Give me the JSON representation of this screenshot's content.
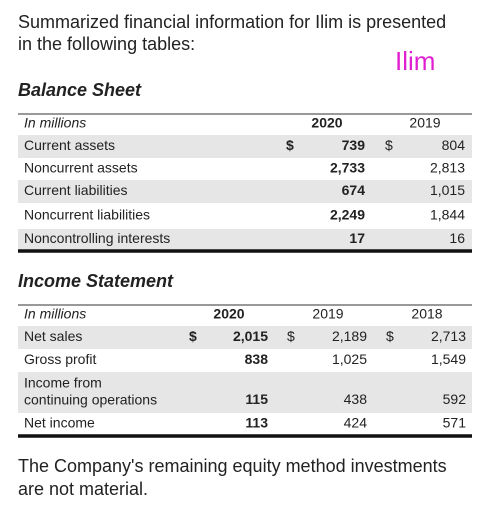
{
  "intro": [
    "Summarized financial information for Ilim is presented",
    "in the following tables:"
  ],
  "company_tag": "Ilim",
  "balance_sheet": {
    "title": "Balance Sheet",
    "header": {
      "label": "In millions",
      "years": [
        "2020",
        "2019"
      ]
    },
    "rows": [
      {
        "label": "Current assets",
        "currency": "$",
        "values": [
          "739",
          "804"
        ]
      },
      {
        "label": "Noncurrent assets",
        "values": [
          "2,733",
          "2,813"
        ]
      },
      {
        "label": "Current liabilities",
        "values": [
          "674",
          "1,015"
        ]
      },
      {
        "label": "Noncurrent liabilities",
        "values": [
          "2,249",
          "1,844"
        ]
      },
      {
        "label": "Noncontrolling interests",
        "values": [
          "17",
          "16"
        ]
      }
    ]
  },
  "income_statement": {
    "title": "Income Statement",
    "header": {
      "label": "In millions",
      "years": [
        "2020",
        "2019",
        "2018"
      ]
    },
    "rows": [
      {
        "label": [
          "Net sales"
        ],
        "currency": "$",
        "values": [
          "2,015",
          "2,189",
          "2,713"
        ]
      },
      {
        "label": [
          "Gross profit"
        ],
        "values": [
          "838",
          "1,025",
          "1,549"
        ]
      },
      {
        "label": [
          "Income from",
          "continuing operations"
        ],
        "values": [
          "115",
          "438",
          "592"
        ]
      },
      {
        "label": [
          "Net income"
        ],
        "values": [
          "113",
          "424",
          "571"
        ]
      }
    ]
  },
  "footer": [
    "The Company's remaining equity method investments",
    "are not material."
  ]
}
